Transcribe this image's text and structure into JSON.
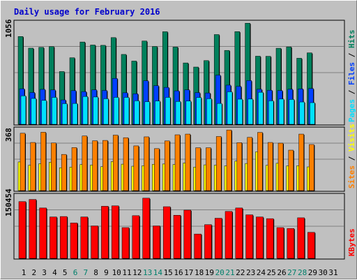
{
  "chart_data": {
    "type": "bar",
    "title": "Daily usage for February 2016",
    "colors": {
      "background": "#c0c0c0",
      "title": "#0000cc",
      "hits": "#00805c",
      "files": "#0040ff",
      "pages": "#00e0ff",
      "visits": "#ffff00",
      "sites": "#ff8000",
      "kbytes": "#ff0000",
      "weekend_day": "#00806b",
      "weekday": "#000000",
      "grid": "#808080"
    },
    "x": {
      "days": [
        "1",
        "2",
        "3",
        "4",
        "5",
        "6",
        "7",
        "8",
        "9",
        "10",
        "11",
        "12",
        "13",
        "14",
        "15",
        "16",
        "17",
        "18",
        "19",
        "20",
        "21",
        "22",
        "23",
        "24",
        "25",
        "26",
        "27",
        "28",
        "29",
        "30",
        "31"
      ],
      "weekend_days": [
        "6",
        "7",
        "13",
        "14",
        "20",
        "21",
        "27",
        "28"
      ]
    },
    "panels": [
      {
        "name": "hits-files-pages",
        "y_label": "1056",
        "ylim": [
          0,
          1056
        ],
        "legend": [
          {
            "text": "Pages",
            "color": "#00e0ff"
          },
          {
            "text": " / ",
            "color": "#000000"
          },
          {
            "text": "Files",
            "color": "#0040ff"
          },
          {
            "text": " / ",
            "color": "#000000"
          },
          {
            "text": "Hits",
            "color": "#00805c"
          }
        ],
        "series": [
          {
            "name": "Hits",
            "values": [
              897,
              778,
              786,
              794,
              539,
              680,
              841,
              810,
              807,
              886,
              714,
              646,
              851,
              795,
              946,
              789,
              627,
              585,
              651,
              917,
              755,
              947,
              1033,
              696,
              695,
              777,
              791,
              675,
              730
            ]
          },
          {
            "name": "Files",
            "values": [
              363,
              325,
              357,
              351,
              249,
              344,
              334,
              352,
              346,
              469,
              322,
              312,
              445,
              395,
              377,
              342,
              352,
              324,
              320,
              502,
              400,
              388,
              447,
              358,
              348,
              345,
              358,
              362,
              366
            ]
          },
          {
            "name": "Pages",
            "values": [
              291,
              264,
              244,
              275,
              211,
              213,
              284,
              279,
              261,
              275,
              275,
              240,
              231,
              238,
              275,
              233,
              238,
              274,
              261,
              213,
              332,
              257,
              258,
              327,
              240,
              258,
              254,
              228,
              221
            ]
          }
        ]
      },
      {
        "name": "visits-sites",
        "y_label": "368",
        "ylim": [
          0,
          368
        ],
        "legend": [
          {
            "text": "Sites",
            "color": "#ff8000"
          },
          {
            "text": " / ",
            "color": "#000000"
          },
          {
            "text": "Visits",
            "color": "#ffff00"
          }
        ],
        "series": [
          {
            "name": "Sites",
            "values": [
              336,
              282,
              342,
              279,
              212,
              252,
              320,
              292,
              294,
              325,
              310,
              262,
              315,
              246,
              291,
              327,
              331,
              251,
              251,
              317,
              355,
              281,
              312,
              341,
              282,
              278,
              237,
              331,
              270
            ]
          },
          {
            "name": "Visits",
            "values": [
              168,
              149,
              158,
              166,
              134,
              138,
              153,
              150,
              140,
              170,
              155,
              143,
              146,
              154,
              156,
              153,
              162,
              138,
              151,
              149,
              145,
              173,
              159,
              227,
              148,
              160,
              145,
              146,
              139
            ]
          }
        ]
      },
      {
        "name": "kbytes",
        "y_label": "150454",
        "ylim": [
          0,
          150454
        ],
        "legend": [
          {
            "text": "KBytes",
            "color": "#ff0000"
          }
        ],
        "series": [
          {
            "name": "KBytes",
            "values": [
              133000,
              138000,
              118000,
              97000,
              98000,
              83000,
              97000,
              76000,
              122000,
              123000,
              72000,
              100000,
              141000,
              76000,
              121000,
              101000,
              113000,
              57000,
              79000,
              94000,
              110000,
              118000,
              102000,
              97000,
              93000,
              72000,
              70000,
              95000,
              61000
            ]
          }
        ]
      }
    ]
  }
}
